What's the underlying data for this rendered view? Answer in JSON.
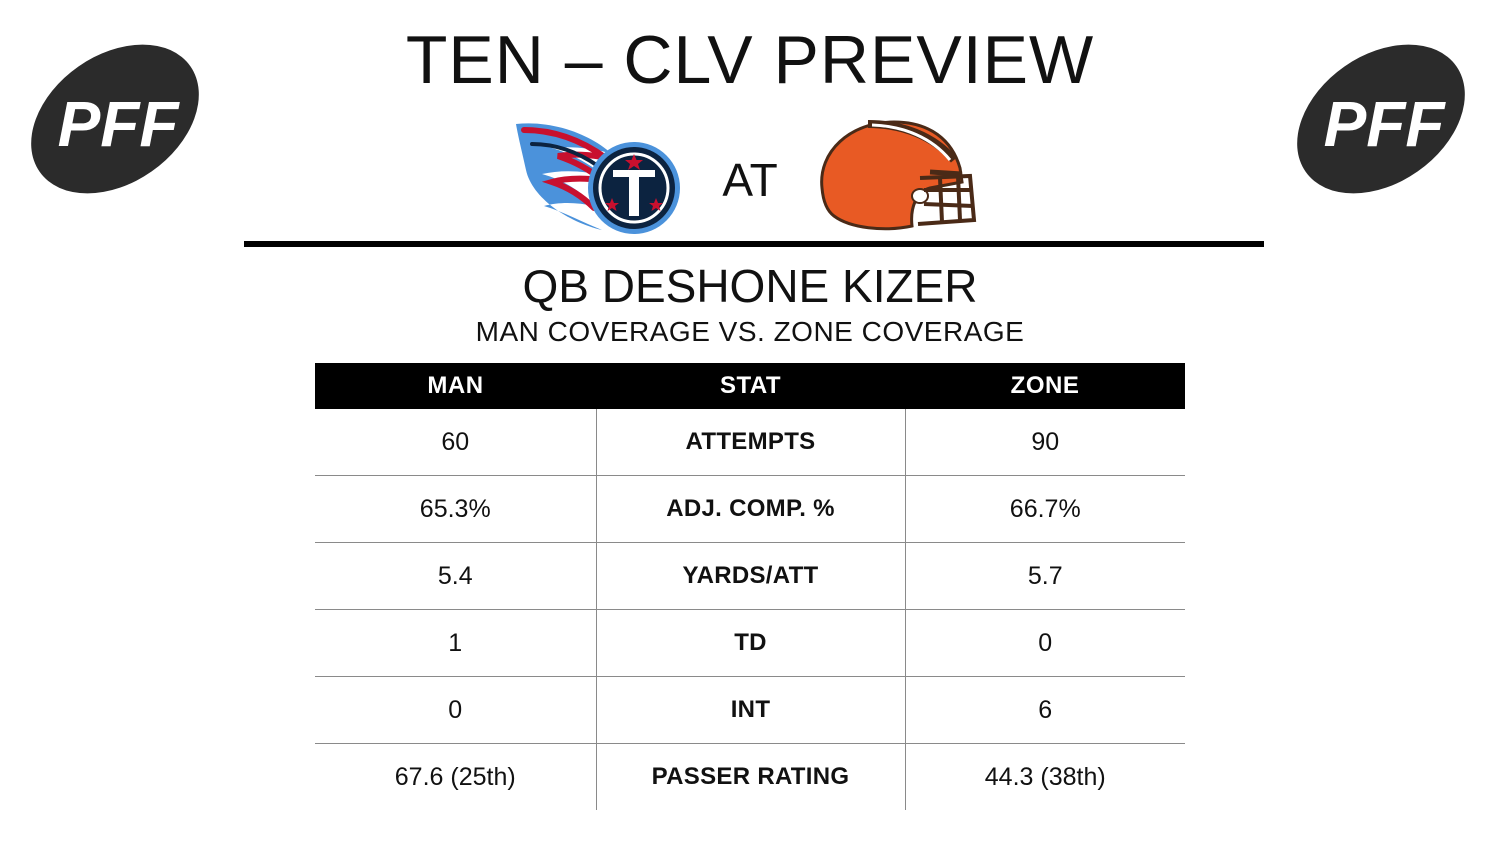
{
  "header": {
    "title": "TEN – CLV PREVIEW",
    "at_text": "AT",
    "brand_logo": "PFF",
    "away_team_logo": "titans-logo",
    "home_team_logo": "browns-helmet-logo"
  },
  "player": {
    "name": "QB DESHONE KIZER",
    "subtitle": "MAN COVERAGE VS. ZONE COVERAGE"
  },
  "table": {
    "headers": [
      "MAN",
      "STAT",
      "ZONE"
    ],
    "rows": [
      {
        "man": "60",
        "stat": "ATTEMPTS",
        "zone": "90"
      },
      {
        "man": "65.3%",
        "stat": "ADJ. COMP. %",
        "zone": "66.7%"
      },
      {
        "man": "5.4",
        "stat": "YARDS/ATT",
        "zone": "5.7"
      },
      {
        "man": "1",
        "stat": "TD",
        "zone": "0"
      },
      {
        "man": "0",
        "stat": "INT",
        "zone": "6"
      },
      {
        "man": "67.6 (25th)",
        "stat": "PASSER RATING",
        "zone": "44.3 (38th)"
      }
    ]
  },
  "colors": {
    "pff_ball": "#2b2b2b",
    "titans_navy": "#0c2340",
    "titans_red": "#c8102e",
    "titans_blue": "#4b92db",
    "browns_orange": "#e85a24",
    "browns_brown": "#4a2a17",
    "header_bg": "#000000"
  }
}
